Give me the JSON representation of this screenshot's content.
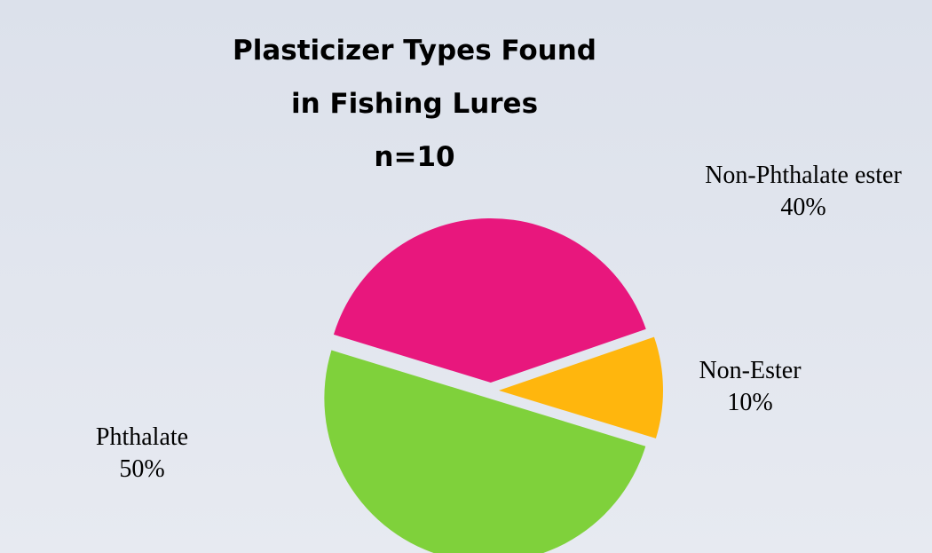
{
  "chart_data": {
    "type": "pie",
    "title": [
      "Plasticizer Types Found",
      "in Fishing Lures",
      "n=10"
    ],
    "categories": [
      "Non-Phthalate ester",
      "Non-Ester",
      "Phthalate"
    ],
    "values": [
      40,
      10,
      50
    ],
    "value_labels": [
      "40%",
      "10%",
      "50%"
    ],
    "colors": [
      "#e8177d",
      "#ffb60d",
      "#7fd13b"
    ]
  }
}
